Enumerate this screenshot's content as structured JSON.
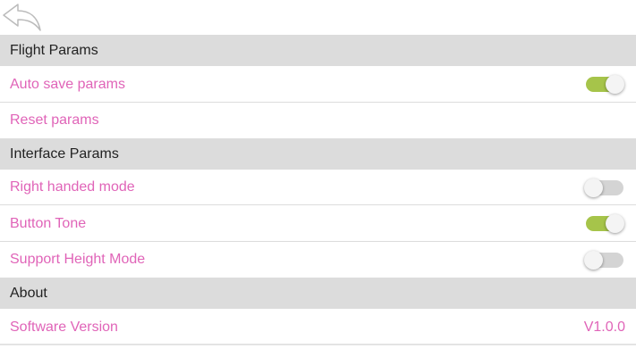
{
  "sections": [
    {
      "title": "Flight Params",
      "items": [
        {
          "label": "Auto save params",
          "toggle": true
        },
        {
          "label": "Reset params"
        }
      ]
    },
    {
      "title": "Interface Params",
      "items": [
        {
          "label": "Right handed mode",
          "toggle": false
        },
        {
          "label": "Button Tone",
          "toggle": true
        },
        {
          "label": "Support Height Mode",
          "toggle": false
        }
      ]
    },
    {
      "title": "About",
      "items": [
        {
          "label": "Software Version",
          "value": "V1.0.0"
        }
      ]
    }
  ],
  "colors": {
    "accent": "#e064b8",
    "toggle_on": "#a6c44a",
    "header_bg": "#dcdcdc"
  }
}
